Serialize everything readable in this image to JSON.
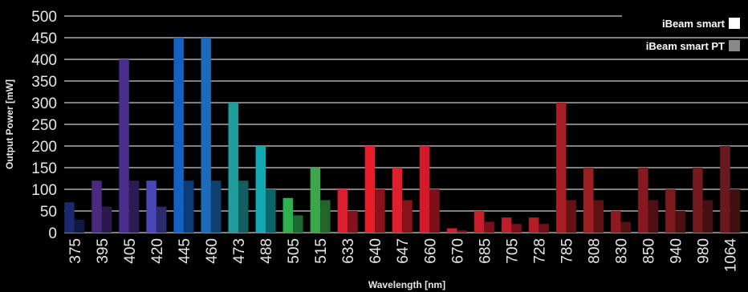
{
  "chart_data": {
    "type": "bar",
    "xlabel": "Wavelength [nm]",
    "ylabel": "Output Power [mW]",
    "ylim": [
      0,
      500
    ],
    "yticks": [
      0,
      50,
      100,
      150,
      200,
      250,
      300,
      350,
      400,
      450,
      500
    ],
    "grid": true,
    "legend_position": "top-right",
    "categories": [
      "375",
      "395",
      "405",
      "420",
      "445",
      "460",
      "473",
      "488",
      "505",
      "515",
      "633",
      "640",
      "647",
      "660",
      "670",
      "685",
      "705",
      "728",
      "785",
      "808",
      "830",
      "850",
      "940",
      "980",
      "1064"
    ],
    "bar_colors": [
      "#1b2a6e",
      "#4a2a7e",
      "#4b2e8c",
      "#4848b8",
      "#1460c4",
      "#1d6aba",
      "#1f9c9c",
      "#12a8b2",
      "#2eb050",
      "#3aa84a",
      "#dc1e2e",
      "#e61e2a",
      "#e01e2e",
      "#d41a2a",
      "#d42030",
      "#c81e2c",
      "#c01e2a",
      "#b81c28",
      "#a81e24",
      "#9a1e22",
      "#8e1a20",
      "#861a20",
      "#7c1a1e",
      "#721a1e",
      "#6a1a1e"
    ],
    "series": [
      {
        "name": "iBeam smart",
        "legend_color": "#ffffff",
        "values": [
          70,
          120,
          400,
          120,
          450,
          450,
          300,
          200,
          80,
          150,
          100,
          200,
          150,
          200,
          10,
          50,
          35,
          35,
          300,
          150,
          50,
          150,
          100,
          150,
          200
        ]
      },
      {
        "name": "iBeam smart PT",
        "legend_color": "#888888",
        "values": [
          30,
          60,
          120,
          60,
          120,
          120,
          120,
          100,
          40,
          75,
          50,
          100,
          75,
          100,
          5,
          25,
          20,
          20,
          75,
          75,
          25,
          75,
          50,
          75,
          100
        ]
      }
    ]
  }
}
